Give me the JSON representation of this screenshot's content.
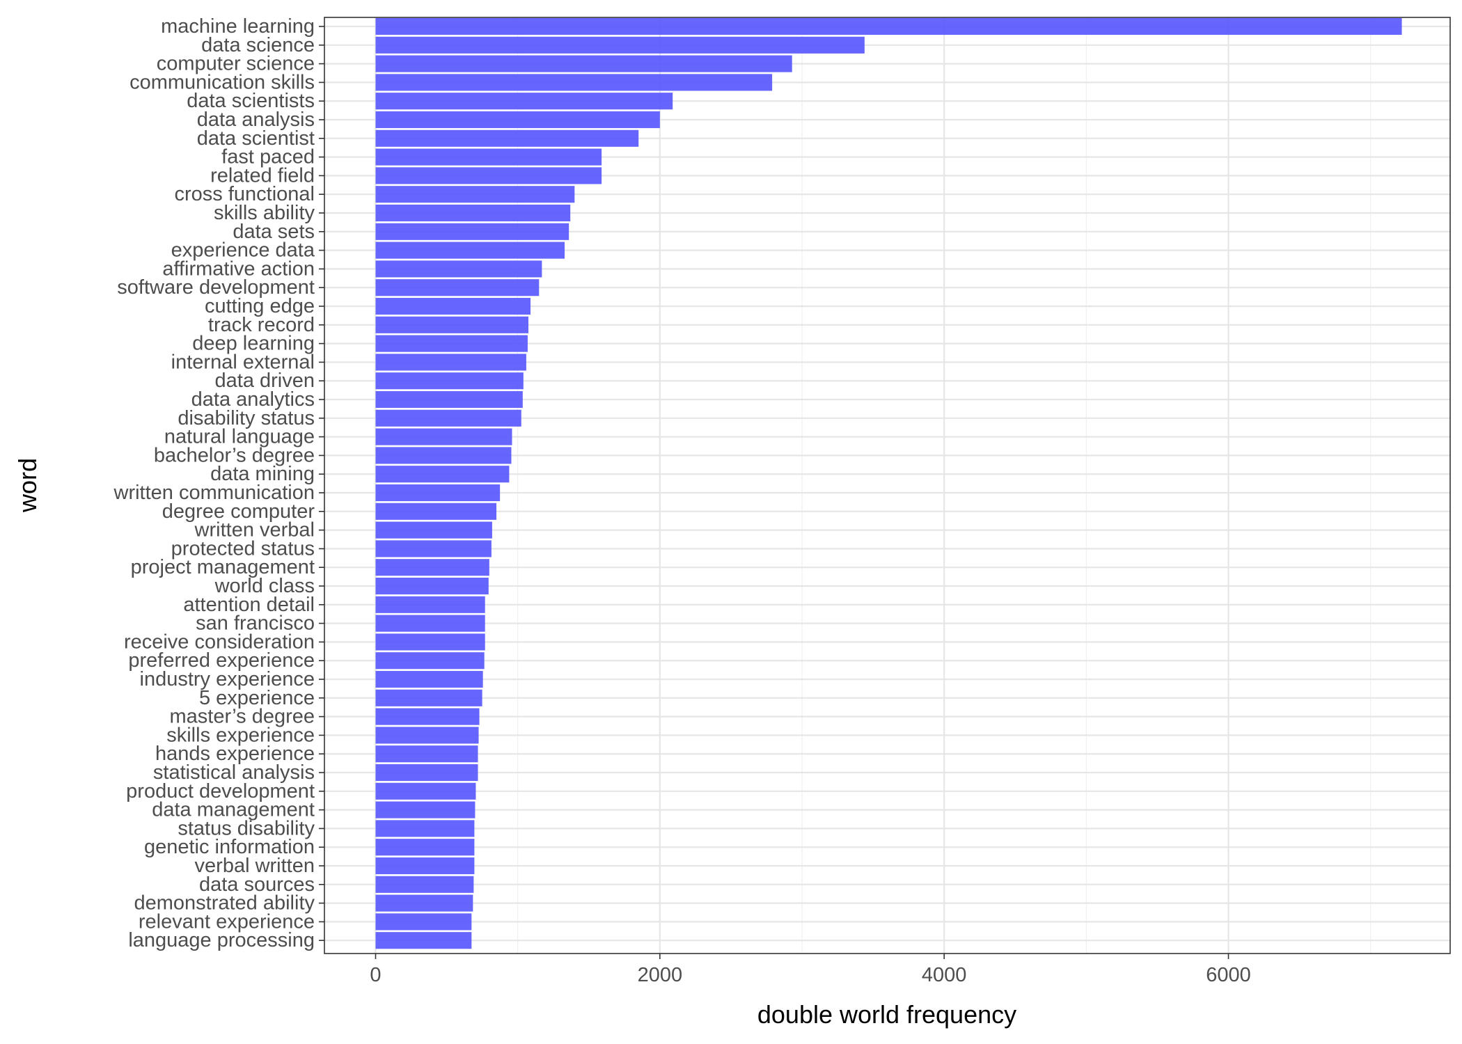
{
  "chart_data": {
    "type": "bar",
    "orientation": "horizontal",
    "title": "",
    "xlabel": "double world frequency",
    "ylabel": "word",
    "xlim": [
      -360,
      7560
    ],
    "x_ticks": [
      0,
      2000,
      4000,
      6000
    ],
    "grid": true,
    "bar_color": "#5555ff",
    "categories": [
      "machine learning",
      "data science",
      "computer science",
      "communication skills",
      "data scientists",
      "data analysis",
      "data scientist",
      "fast paced",
      "related field",
      "cross functional",
      "skills ability",
      "data sets",
      "experience data",
      "affirmative action",
      "software development",
      "cutting edge",
      "track record",
      "deep learning",
      "internal external",
      "data driven",
      "data analytics",
      "disability status",
      "natural language",
      "bachelor’s degree",
      "data mining",
      "written communication",
      "degree computer",
      "written verbal",
      "protected status",
      "project management",
      "world class",
      "attention detail",
      "san francisco",
      "receive consideration",
      "preferred experience",
      "industry experience",
      "5 experience",
      "master’s degree",
      "skills experience",
      "hands experience",
      "statistical analysis",
      "product development",
      "data management",
      "status disability",
      "genetic information",
      "verbal written",
      "data sources",
      "demonstrated ability",
      "relevant experience",
      "language processing"
    ],
    "values": [
      7220,
      3440,
      2930,
      2790,
      2090,
      2000,
      1850,
      1590,
      1590,
      1400,
      1370,
      1360,
      1330,
      1170,
      1150,
      1090,
      1075,
      1070,
      1060,
      1040,
      1035,
      1025,
      960,
      955,
      940,
      875,
      850,
      820,
      815,
      800,
      795,
      770,
      770,
      770,
      765,
      755,
      750,
      730,
      725,
      720,
      720,
      705,
      700,
      695,
      695,
      695,
      690,
      685,
      675,
      675
    ]
  }
}
